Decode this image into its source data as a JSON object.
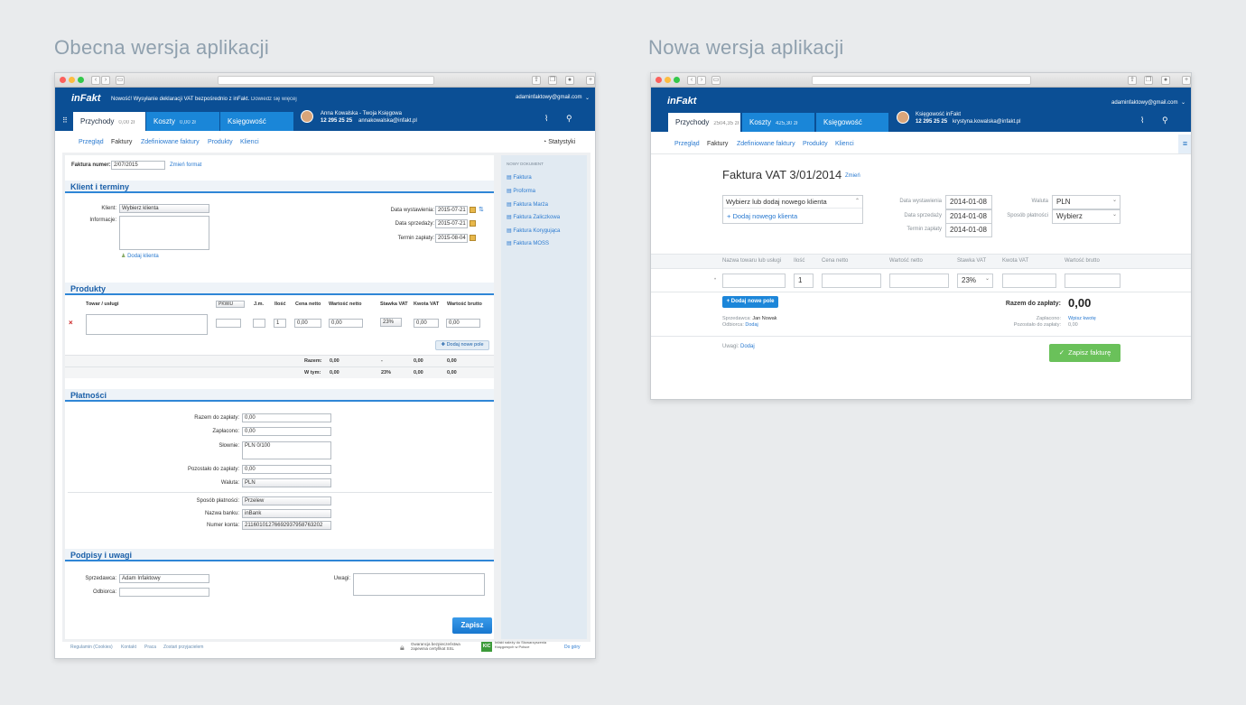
{
  "titles": {
    "old": "Obecna wersja aplikacji",
    "new": "Nowa wersja aplikacji"
  },
  "old": {
    "logo": "inFakt",
    "notice": "Nowość! Wysyłanie deklaracji VAT bezpośrednio z inFakt.",
    "notice_link": "Dowiedz się więcej",
    "user_email": "adaminfaktowy@gmail.com",
    "tabs": [
      {
        "label": "Przychody",
        "amount": "0,00 zł"
      },
      {
        "label": "Koszty",
        "amount": "0,00 zł"
      },
      {
        "label": "Księgowość",
        "amount": ""
      }
    ],
    "accountant": {
      "name": "Anna Kowalska - Twoja Księgowa",
      "phone": "12 295 25 25",
      "email": "annakowalska@infakt.pl"
    },
    "subnav": [
      "Przegląd",
      "Faktury",
      "Zdefiniowane faktury",
      "Produkty",
      "Klienci"
    ],
    "stats": "Statystyki",
    "invoice_number_label": "Faktura numer:",
    "invoice_number": "2/07/2015",
    "change_format": "Zmień format",
    "sec_client": "Klient i terminy",
    "client_label": "Klient:",
    "client_select": "Wybierz klienta",
    "info_label": "Informacje:",
    "add_client": "Dodaj klienta",
    "date_issue_label": "Data wystawienia:",
    "date_issue": "2015-07-21",
    "date_sale_label": "Data sprzedaży:",
    "date_sale": "2015-07-21",
    "due_label": "Termin zapłaty:",
    "due": "2015-08-04",
    "sec_products": "Produkty",
    "prod_headers": {
      "name": "Towar / usługi",
      "pkwiu": "PKWiU",
      "unit": "J.m.",
      "qty": "Ilość",
      "net_price": "Cena netto",
      "net_value": "Wartość netto",
      "vat_rate": "Stawka VAT",
      "vat_amount": "Kwota VAT",
      "gross": "Wartość brutto"
    },
    "prod_row": {
      "qty": "1",
      "net_price": "0,00",
      "net_value": "0,00",
      "vat": "23%",
      "vat_amount": "0,00",
      "gross": "0,00"
    },
    "remove": "×",
    "add_field": "Dodaj nowe pole",
    "totals": {
      "label": "Razem:",
      "net": "0,00",
      "vat_rate": "-",
      "vat": "0,00",
      "gross": "0,00"
    },
    "intotal": {
      "label": "W tym:",
      "net": "0,00",
      "vat_rate": "23%",
      "vat": "0,00",
      "gross": "0,00"
    },
    "sec_payments": "Płatności",
    "pay": {
      "to_pay_label": "Razem do zapłaty:",
      "to_pay": "0,00",
      "paid_label": "Zapłacono:",
      "paid": "0,00",
      "words_label": "Słownie:",
      "words": "PLN 0/100",
      "left_label": "Pozostało do zapłaty:",
      "left": "0,00",
      "currency_label": "Waluta:",
      "currency": "PLN",
      "method_label": "Sposób płatności:",
      "method": "Przelew",
      "bank_label": "Nazwa banku:",
      "bank": "inBank",
      "account_label": "Numer konta:",
      "account": "21160101276692937958763202"
    },
    "sec_sign": "Podpisy i uwagi",
    "seller_label": "Sprzedawca:",
    "seller": "Adam Infaktowy",
    "buyer_label": "Odbiorca:",
    "notes_label": "Uwagi:",
    "save": "Zapisz",
    "side_title": "NOWY DOKUMENT",
    "side_items": [
      "Faktura",
      "Proforma",
      "Faktura Marża",
      "Faktura Zaliczkowa",
      "Faktura Korygująca",
      "Faktura MOSS"
    ],
    "footer_links": [
      "Regulamin (Cookies)",
      "Kontakt",
      "Praca",
      "Zostań przyjacielem"
    ],
    "ssl": "Gwarancja bezpieczeństwa zapewnia certyfikat SSL",
    "kic": "Infakt należy do Stowarzyszenia Księgowych w Polsce",
    "top": "Do góry"
  },
  "new": {
    "logo": "inFakt",
    "user_email": "adaminfaktowy@gmail.com",
    "tabs": [
      {
        "label": "Przychody",
        "amount": "2504,35 zł"
      },
      {
        "label": "Koszty",
        "amount": "425,30 zł"
      },
      {
        "label": "Księgowość",
        "amount": ""
      }
    ],
    "accountant": {
      "name": "Księgowość inFakt",
      "phone": "12 295 25 25",
      "email": "krystyna.kowalska@infakt.pl"
    },
    "subnav": [
      "Przegląd",
      "Faktury",
      "Zdefiniowane faktury",
      "Produkty",
      "Klienci"
    ],
    "invoice_title": "Faktura VAT 3/01/2014",
    "change": "Zmień",
    "client_select": "Wybierz lub dodaj nowego klienta",
    "add_client": "+ Dodaj nowego klienta",
    "date_issue_label": "Data wystawienia",
    "date_issue": "2014-01-08",
    "date_sale_label": "Data sprzedaży",
    "date_sale": "2014-01-08",
    "due_label": "Termin zapłaty",
    "due": "2014-01-08",
    "currency_label": "Waluta",
    "currency": "PLN",
    "method_label": "Sposób płatności",
    "method": "Wybierz",
    "headers": {
      "name": "Nazwa towaru lub usługi",
      "qty": "Ilość",
      "net_price": "Cena netto",
      "net_value": "Wartość netto",
      "vat_rate": "Stawka VAT",
      "vat_amount": "Kwota VAT",
      "gross": "Wartość brutto"
    },
    "row": {
      "qty": "1",
      "vat": "23%"
    },
    "add_field": "+ Dodaj nowe pole",
    "to_pay_label": "Razem do zapłaty:",
    "to_pay": "0,00",
    "seller_label": "Sprzedawca:",
    "seller": "Jan Nowak",
    "buyer_label": "Odbiorca:",
    "buyer": "Dodaj",
    "paid_label": "Zapłacono:",
    "paid": "Wpisz kwotę",
    "left_label": "Pozostało do zapłaty:",
    "left": "0,00",
    "notes_label": "Uwagi:",
    "notes": "Dodaj",
    "save": "Zapisz fakturę"
  }
}
